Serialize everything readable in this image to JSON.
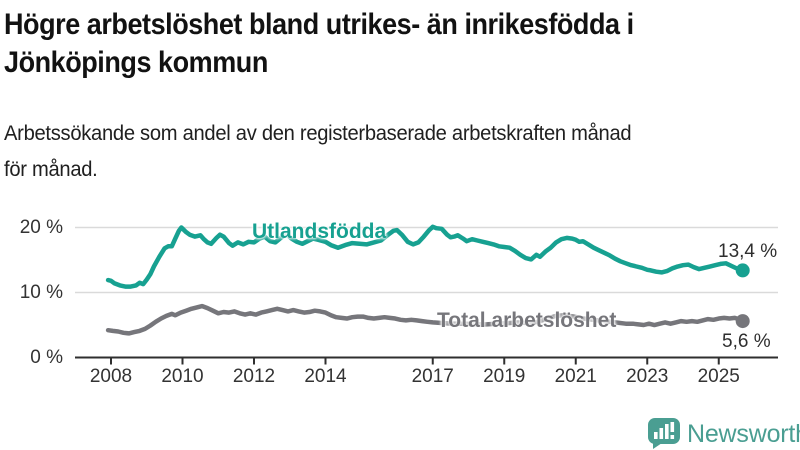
{
  "header": {
    "title_lines": [
      "Högre arbetslöshet bland utrikes- än inrikesfödda i",
      "Jönköpings kommun"
    ],
    "subtitle_lines": [
      "Arbetssökande som andel av den registerbaserade arbetskraften månad",
      "för månad."
    ]
  },
  "footer": {
    "brand": "Newsworthy",
    "brand_color": "#4a9e92"
  },
  "colors": {
    "background": "#ffffff",
    "title": "#121212",
    "axis": "#2f2f2f",
    "gridline": "#dadada",
    "tick_label": "#333333"
  },
  "chart_data": {
    "type": "line",
    "title": "Högre arbetslöshet bland utrikes- än inrikesfödda i Jönköpings kommun",
    "subtitle": "Arbetssökande som andel av den registerbaserade arbetskraften månad för månad.",
    "xlabel": "",
    "ylabel": "",
    "x_unit": "year (monthly data)",
    "y_unit": "%",
    "xlim": [
      2007.9,
      2025.75
    ],
    "ylim": [
      0,
      22
    ],
    "grid": "horizontal",
    "y_ticks": [
      {
        "value": 0,
        "label": "0 %"
      },
      {
        "value": 10,
        "label": "10 %"
      },
      {
        "value": 20,
        "label": "20 %"
      }
    ],
    "y_gridlines": [
      10,
      20
    ],
    "x_ticks": [
      {
        "value": 2008,
        "label": "2008"
      },
      {
        "value": 2010,
        "label": "2010"
      },
      {
        "value": 2012,
        "label": "2012"
      },
      {
        "value": 2014,
        "label": "2014"
      },
      {
        "value": 2017,
        "label": "2017"
      },
      {
        "value": 2019,
        "label": "2019"
      },
      {
        "value": 2021,
        "label": "2021"
      },
      {
        "value": 2023,
        "label": "2023"
      },
      {
        "value": 2025,
        "label": "2025"
      }
    ],
    "series": [
      {
        "name": "Utlandsfödda",
        "color": "#17a191",
        "end_label": "13,4 %",
        "end_value": 13.4,
        "points": [
          [
            2007.92,
            11.9
          ],
          [
            2008.0,
            11.8
          ],
          [
            2008.1,
            11.4
          ],
          [
            2008.25,
            11.1
          ],
          [
            2008.4,
            10.9
          ],
          [
            2008.55,
            10.9
          ],
          [
            2008.7,
            11.1
          ],
          [
            2008.8,
            11.5
          ],
          [
            2008.9,
            11.3
          ],
          [
            2009.0,
            12.0
          ],
          [
            2009.1,
            12.8
          ],
          [
            2009.2,
            14.0
          ],
          [
            2009.35,
            15.5
          ],
          [
            2009.5,
            16.8
          ],
          [
            2009.6,
            17.1
          ],
          [
            2009.7,
            17.1
          ],
          [
            2009.8,
            18.3
          ],
          [
            2009.9,
            19.5
          ],
          [
            2009.97,
            20.0
          ],
          [
            2010.1,
            19.3
          ],
          [
            2010.2,
            18.9
          ],
          [
            2010.35,
            18.6
          ],
          [
            2010.5,
            18.8
          ],
          [
            2010.6,
            18.2
          ],
          [
            2010.7,
            17.7
          ],
          [
            2010.8,
            17.5
          ],
          [
            2010.95,
            18.4
          ],
          [
            2011.05,
            18.9
          ],
          [
            2011.15,
            18.6
          ],
          [
            2011.3,
            17.6
          ],
          [
            2011.4,
            17.2
          ],
          [
            2011.55,
            17.7
          ],
          [
            2011.7,
            17.4
          ],
          [
            2011.85,
            17.8
          ],
          [
            2012.0,
            17.7
          ],
          [
            2012.15,
            18.3
          ],
          [
            2012.3,
            18.6
          ],
          [
            2012.45,
            17.9
          ],
          [
            2012.6,
            17.7
          ],
          [
            2012.75,
            18.4
          ],
          [
            2012.9,
            19.0
          ],
          [
            2013.05,
            18.3
          ],
          [
            2013.2,
            17.8
          ],
          [
            2013.35,
            17.5
          ],
          [
            2013.5,
            17.9
          ],
          [
            2013.65,
            18.3
          ],
          [
            2013.8,
            18.1
          ],
          [
            2014.0,
            17.8
          ],
          [
            2014.15,
            17.3
          ],
          [
            2014.35,
            16.9
          ],
          [
            2014.55,
            17.3
          ],
          [
            2014.75,
            17.6
          ],
          [
            2014.95,
            17.5
          ],
          [
            2015.15,
            17.4
          ],
          [
            2015.35,
            17.7
          ],
          [
            2015.55,
            18.0
          ],
          [
            2015.75,
            18.9
          ],
          [
            2015.9,
            19.5
          ],
          [
            2016.0,
            19.6
          ],
          [
            2016.15,
            18.8
          ],
          [
            2016.3,
            17.8
          ],
          [
            2016.45,
            17.4
          ],
          [
            2016.6,
            17.7
          ],
          [
            2016.75,
            18.6
          ],
          [
            2016.9,
            19.6
          ],
          [
            2017.0,
            20.1
          ],
          [
            2017.1,
            19.9
          ],
          [
            2017.25,
            19.8
          ],
          [
            2017.4,
            18.9
          ],
          [
            2017.5,
            18.5
          ],
          [
            2017.6,
            18.6
          ],
          [
            2017.7,
            18.8
          ],
          [
            2017.85,
            18.3
          ],
          [
            2017.95,
            17.9
          ],
          [
            2018.1,
            18.2
          ],
          [
            2018.25,
            18.0
          ],
          [
            2018.4,
            17.8
          ],
          [
            2018.55,
            17.6
          ],
          [
            2018.7,
            17.4
          ],
          [
            2018.85,
            17.1
          ],
          [
            2019.0,
            17.0
          ],
          [
            2019.15,
            16.9
          ],
          [
            2019.3,
            16.4
          ],
          [
            2019.45,
            15.8
          ],
          [
            2019.6,
            15.3
          ],
          [
            2019.75,
            15.1
          ],
          [
            2019.9,
            15.8
          ],
          [
            2020.0,
            15.5
          ],
          [
            2020.15,
            16.3
          ],
          [
            2020.3,
            16.9
          ],
          [
            2020.45,
            17.7
          ],
          [
            2020.6,
            18.2
          ],
          [
            2020.75,
            18.4
          ],
          [
            2020.9,
            18.3
          ],
          [
            2021.0,
            18.1
          ],
          [
            2021.1,
            17.8
          ],
          [
            2021.2,
            17.9
          ],
          [
            2021.35,
            17.4
          ],
          [
            2021.5,
            16.9
          ],
          [
            2021.65,
            16.5
          ],
          [
            2021.8,
            16.1
          ],
          [
            2021.95,
            15.7
          ],
          [
            2022.1,
            15.2
          ],
          [
            2022.25,
            14.8
          ],
          [
            2022.4,
            14.5
          ],
          [
            2022.55,
            14.2
          ],
          [
            2022.7,
            14.0
          ],
          [
            2022.85,
            13.8
          ],
          [
            2023.0,
            13.5
          ],
          [
            2023.1,
            13.4
          ],
          [
            2023.25,
            13.2
          ],
          [
            2023.4,
            13.1
          ],
          [
            2023.55,
            13.3
          ],
          [
            2023.7,
            13.7
          ],
          [
            2023.85,
            14.0
          ],
          [
            2024.0,
            14.2
          ],
          [
            2024.15,
            14.3
          ],
          [
            2024.3,
            13.9
          ],
          [
            2024.45,
            13.6
          ],
          [
            2024.6,
            13.8
          ],
          [
            2024.75,
            14.0
          ],
          [
            2024.9,
            14.2
          ],
          [
            2025.05,
            14.4
          ],
          [
            2025.2,
            14.5
          ],
          [
            2025.35,
            14.1
          ],
          [
            2025.5,
            13.7
          ],
          [
            2025.67,
            13.4
          ]
        ]
      },
      {
        "name": "Total arbetslöshet",
        "color": "#76767b",
        "end_label": "5,6 %",
        "end_value": 5.6,
        "points": [
          [
            2007.92,
            4.2
          ],
          [
            2008.05,
            4.1
          ],
          [
            2008.2,
            4.0
          ],
          [
            2008.35,
            3.8
          ],
          [
            2008.5,
            3.7
          ],
          [
            2008.65,
            3.9
          ],
          [
            2008.8,
            4.1
          ],
          [
            2008.95,
            4.4
          ],
          [
            2009.1,
            4.9
          ],
          [
            2009.25,
            5.5
          ],
          [
            2009.4,
            6.0
          ],
          [
            2009.55,
            6.4
          ],
          [
            2009.7,
            6.7
          ],
          [
            2009.8,
            6.5
          ],
          [
            2009.95,
            6.9
          ],
          [
            2010.1,
            7.2
          ],
          [
            2010.25,
            7.5
          ],
          [
            2010.4,
            7.7
          ],
          [
            2010.55,
            7.9
          ],
          [
            2010.7,
            7.6
          ],
          [
            2010.85,
            7.2
          ],
          [
            2011.0,
            6.8
          ],
          [
            2011.15,
            7.0
          ],
          [
            2011.3,
            6.9
          ],
          [
            2011.45,
            7.1
          ],
          [
            2011.6,
            6.8
          ],
          [
            2011.75,
            6.6
          ],
          [
            2011.9,
            6.8
          ],
          [
            2012.05,
            6.6
          ],
          [
            2012.2,
            6.9
          ],
          [
            2012.35,
            7.1
          ],
          [
            2012.5,
            7.3
          ],
          [
            2012.65,
            7.5
          ],
          [
            2012.8,
            7.3
          ],
          [
            2012.95,
            7.1
          ],
          [
            2013.1,
            7.3
          ],
          [
            2013.25,
            7.1
          ],
          [
            2013.4,
            6.9
          ],
          [
            2013.55,
            7.0
          ],
          [
            2013.7,
            7.2
          ],
          [
            2013.85,
            7.1
          ],
          [
            2014.0,
            6.9
          ],
          [
            2014.15,
            6.5
          ],
          [
            2014.3,
            6.2
          ],
          [
            2014.45,
            6.1
          ],
          [
            2014.6,
            6.0
          ],
          [
            2014.75,
            6.2
          ],
          [
            2014.9,
            6.3
          ],
          [
            2015.05,
            6.3
          ],
          [
            2015.2,
            6.1
          ],
          [
            2015.35,
            6.0
          ],
          [
            2015.5,
            6.1
          ],
          [
            2015.65,
            6.2
          ],
          [
            2015.8,
            6.1
          ],
          [
            2015.95,
            6.0
          ],
          [
            2016.1,
            5.8
          ],
          [
            2016.25,
            5.7
          ],
          [
            2016.4,
            5.8
          ],
          [
            2016.55,
            5.7
          ],
          [
            2016.7,
            5.6
          ],
          [
            2016.85,
            5.5
          ],
          [
            2017.0,
            5.4
          ],
          [
            2017.3,
            5.3
          ],
          [
            2017.6,
            5.2
          ],
          [
            2017.9,
            5.2
          ],
          [
            2018.2,
            5.1
          ],
          [
            2018.5,
            5.1
          ],
          [
            2018.8,
            5.2
          ],
          [
            2019.1,
            5.3
          ],
          [
            2019.4,
            5.4
          ],
          [
            2019.7,
            5.3
          ],
          [
            2019.95,
            5.5
          ],
          [
            2020.2,
            6.0
          ],
          [
            2020.45,
            6.4
          ],
          [
            2020.7,
            6.5
          ],
          [
            2020.95,
            6.3
          ],
          [
            2021.2,
            6.0
          ],
          [
            2021.5,
            5.8
          ],
          [
            2021.8,
            5.6
          ],
          [
            2022.1,
            5.4
          ],
          [
            2022.4,
            5.2
          ],
          [
            2022.6,
            5.2
          ],
          [
            2022.75,
            5.1
          ],
          [
            2022.9,
            5.0
          ],
          [
            2023.05,
            5.2
          ],
          [
            2023.2,
            5.0
          ],
          [
            2023.35,
            5.2
          ],
          [
            2023.5,
            5.4
          ],
          [
            2023.65,
            5.2
          ],
          [
            2023.8,
            5.4
          ],
          [
            2023.95,
            5.6
          ],
          [
            2024.1,
            5.5
          ],
          [
            2024.25,
            5.6
          ],
          [
            2024.4,
            5.5
          ],
          [
            2024.55,
            5.7
          ],
          [
            2024.7,
            5.9
          ],
          [
            2024.85,
            5.8
          ],
          [
            2025.0,
            6.0
          ],
          [
            2025.15,
            6.1
          ],
          [
            2025.3,
            6.0
          ],
          [
            2025.45,
            6.1
          ],
          [
            2025.55,
            5.9
          ],
          [
            2025.67,
            5.6
          ]
        ]
      }
    ]
  }
}
